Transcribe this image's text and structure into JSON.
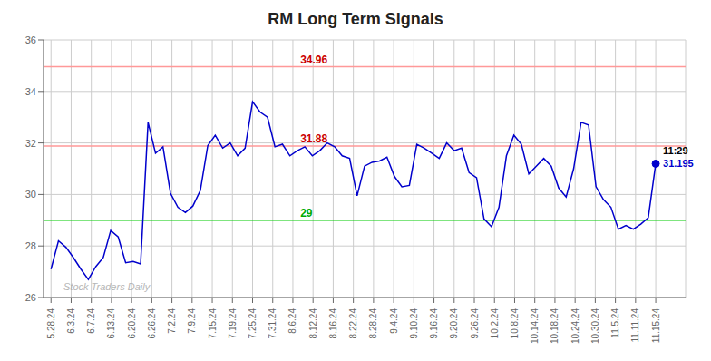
{
  "chart_data": {
    "type": "line",
    "title": "RM Long Term Signals",
    "x": [
      0,
      1,
      2,
      3,
      4,
      5,
      6,
      7,
      8,
      9,
      10,
      11,
      12,
      13,
      14,
      15,
      16,
      17,
      18,
      19,
      20,
      21,
      22,
      23,
      24,
      25,
      26,
      27,
      28,
      29,
      30,
      31,
      32,
      33,
      34,
      35,
      36,
      37,
      38,
      39,
      40,
      41,
      42,
      43,
      44,
      45,
      46,
      47,
      48,
      49,
      50,
      51,
      52,
      53,
      54,
      55,
      56,
      57,
      58,
      59,
      60,
      61,
      62,
      63,
      64,
      65,
      66,
      67,
      68,
      69,
      70,
      71,
      72,
      73,
      74,
      75,
      76,
      77,
      78,
      79,
      80,
      81
    ],
    "values": [
      27.1,
      28.2,
      27.95,
      27.55,
      27.1,
      26.7,
      27.2,
      27.55,
      28.6,
      28.35,
      27.35,
      27.4,
      27.3,
      32.8,
      31.6,
      31.85,
      30.05,
      29.5,
      29.3,
      29.55,
      30.15,
      31.9,
      32.3,
      31.8,
      32.0,
      31.5,
      31.8,
      33.6,
      33.2,
      33.0,
      31.85,
      31.95,
      31.5,
      31.7,
      31.85,
      31.5,
      31.7,
      32.0,
      31.85,
      31.5,
      31.4,
      29.95,
      31.1,
      31.25,
      31.3,
      31.45,
      30.7,
      30.3,
      30.35,
      31.95,
      31.8,
      31.6,
      31.4,
      32.0,
      31.7,
      31.8,
      30.85,
      30.65,
      29.05,
      28.75,
      29.5,
      31.5,
      32.3,
      31.95,
      30.8,
      31.1,
      31.4,
      31.1,
      30.25,
      29.9,
      31.0,
      32.8,
      32.7,
      30.3,
      29.8,
      29.5,
      28.65,
      28.8,
      28.65,
      28.85,
      29.1,
      31.195
    ],
    "color": "#0000cc",
    "xlim": [
      -1,
      85
    ],
    "xticks": [
      {
        "value": 0,
        "label": "5.28.24"
      },
      {
        "value": 2.7,
        "label": "6.3.24"
      },
      {
        "value": 5.4,
        "label": "6.7.24"
      },
      {
        "value": 8.1,
        "label": "6.13.24"
      },
      {
        "value": 10.8,
        "label": "6.20.24"
      },
      {
        "value": 13.5,
        "label": "6.26.24"
      },
      {
        "value": 16.2,
        "label": "7.2.24"
      },
      {
        "value": 18.9,
        "label": "7.9.24"
      },
      {
        "value": 21.6,
        "label": "7.15.24"
      },
      {
        "value": 24.3,
        "label": "7.19.24"
      },
      {
        "value": 27,
        "label": "7.25.24"
      },
      {
        "value": 29.7,
        "label": "7.31.24"
      },
      {
        "value": 32.4,
        "label": "8.6.24"
      },
      {
        "value": 35.1,
        "label": "8.12.24"
      },
      {
        "value": 37.8,
        "label": "8.16.24"
      },
      {
        "value": 40.5,
        "label": "8.22.24"
      },
      {
        "value": 43.2,
        "label": "8.28.24"
      },
      {
        "value": 45.9,
        "label": "9.4.24"
      },
      {
        "value": 48.6,
        "label": "9.10.24"
      },
      {
        "value": 51.3,
        "label": "9.16.24"
      },
      {
        "value": 54,
        "label": "9.20.24"
      },
      {
        "value": 56.7,
        "label": "9.26.24"
      },
      {
        "value": 59.4,
        "label": "10.2.24"
      },
      {
        "value": 62.1,
        "label": "10.8.24"
      },
      {
        "value": 64.8,
        "label": "10.14.24"
      },
      {
        "value": 67.5,
        "label": "10.18.24"
      },
      {
        "value": 70.2,
        "label": "10.24.24"
      },
      {
        "value": 72.9,
        "label": "10.30.24"
      },
      {
        "value": 75.6,
        "label": "11.5.24"
      },
      {
        "value": 78.3,
        "label": "11.11.24"
      },
      {
        "value": 81,
        "label": "11.15.24"
      }
    ],
    "ylim": [
      26,
      36
    ],
    "yticks": [
      26,
      28,
      30,
      32,
      34,
      36
    ],
    "grid": true,
    "grid_color": "#cccccc",
    "reference_lines": [
      {
        "value": 34.96,
        "label": "34.96",
        "color": "#ff9999",
        "label_color": "#cc0000"
      },
      {
        "value": 31.88,
        "label": "31.88",
        "color": "#ff9999",
        "label_color": "#cc0000"
      },
      {
        "value": 29.0,
        "label": "29",
        "color": "#00cc00",
        "label_color": "#00aa00"
      }
    ],
    "last_point": {
      "time": "11:29",
      "time_color": "#000000",
      "value_label": "31.195",
      "value_color": "#0000cc",
      "dot_color": "#0000cc"
    },
    "watermark": "Stock Traders Daily",
    "watermark_color": "#aaaaaa"
  }
}
